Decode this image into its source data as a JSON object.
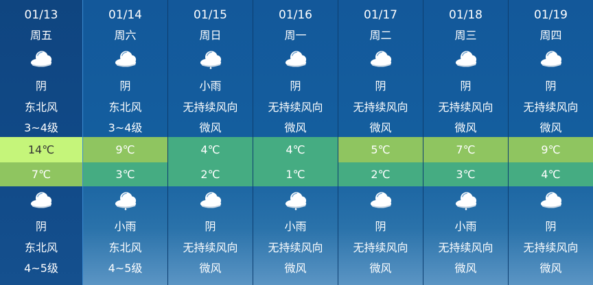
{
  "colors": {
    "hot": "#c5f57a",
    "warm": "#8fc560",
    "cool": "#45ac82"
  },
  "days": [
    {
      "date": "01/13",
      "weekday": "周五",
      "day_icon": "cloud-icon",
      "day_cond": "阴",
      "day_wind": "东北风",
      "day_level": "3~4级",
      "high": "14℃",
      "high_color": "#c5f57a",
      "low": "7℃",
      "low_color": "#8fc560",
      "night_icon": "cloud-icon",
      "night_cond": "阴",
      "night_wind": "东北风",
      "night_level": "4~5级"
    },
    {
      "date": "01/14",
      "weekday": "周六",
      "day_icon": "cloud-icon",
      "day_cond": "阴",
      "day_wind": "东北风",
      "day_level": "3~4级",
      "high": "9℃",
      "high_color": "#8fc560",
      "low": "3℃",
      "low_color": "#45ac82",
      "night_icon": "rain-icon",
      "night_cond": "小雨",
      "night_wind": "东北风",
      "night_level": "4~5级"
    },
    {
      "date": "01/15",
      "weekday": "周日",
      "day_icon": "rain-icon",
      "day_cond": "小雨",
      "day_wind": "无持续风向",
      "day_level": "微风",
      "high": "4℃",
      "high_color": "#45ac82",
      "low": "2℃",
      "low_color": "#45ac82",
      "night_icon": "cloud-icon",
      "night_cond": "阴",
      "night_wind": "无持续风向",
      "night_level": "微风"
    },
    {
      "date": "01/16",
      "weekday": "周一",
      "day_icon": "cloud-icon",
      "day_cond": "阴",
      "day_wind": "无持续风向",
      "day_level": "微风",
      "high": "4℃",
      "high_color": "#45ac82",
      "low": "1℃",
      "low_color": "#45ac82",
      "night_icon": "rain-icon",
      "night_cond": "小雨",
      "night_wind": "无持续风向",
      "night_level": "微风"
    },
    {
      "date": "01/17",
      "weekday": "周二",
      "day_icon": "cloud-icon",
      "day_cond": "阴",
      "day_wind": "无持续风向",
      "day_level": "微风",
      "high": "5℃",
      "high_color": "#8fc560",
      "low": "2℃",
      "low_color": "#45ac82",
      "night_icon": "cloud-icon",
      "night_cond": "阴",
      "night_wind": "无持续风向",
      "night_level": "微风"
    },
    {
      "date": "01/18",
      "weekday": "周三",
      "day_icon": "cloud-icon",
      "day_cond": "阴",
      "day_wind": "无持续风向",
      "day_level": "微风",
      "high": "7℃",
      "high_color": "#8fc560",
      "low": "3℃",
      "low_color": "#45ac82",
      "night_icon": "rain-icon",
      "night_cond": "小雨",
      "night_wind": "无持续风向",
      "night_level": "微风"
    },
    {
      "date": "01/19",
      "weekday": "周四",
      "day_icon": "cloud-icon",
      "day_cond": "阴",
      "day_wind": "无持续风向",
      "day_level": "微风",
      "high": "9℃",
      "high_color": "#8fc560",
      "low": "4℃",
      "low_color": "#45ac82",
      "night_icon": "cloud-icon",
      "night_cond": "阴",
      "night_wind": "无持续风向",
      "night_level": "微风"
    }
  ]
}
